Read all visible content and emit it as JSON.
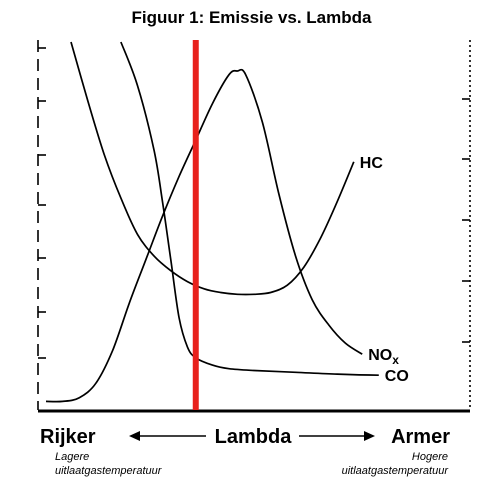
{
  "chart_data": {
    "type": "line",
    "title": "Figuur 1: Emissie vs. Lambda",
    "x_axis": {
      "center_label": "Lambda",
      "left_label": "Rijker",
      "left_sublabel": [
        "Lagere",
        "uitlaatgastemperatuur"
      ],
      "right_label": "Armer",
      "right_sublabel": [
        "Hogere",
        "uitlaatgastemperatuur"
      ]
    },
    "xlim": [
      0,
      100
    ],
    "ylim": [
      0,
      100
    ],
    "stoichiometric_line": {
      "x": 36,
      "color": "#e8211c"
    },
    "series": [
      {
        "name": "HC",
        "label_parts": [
          "HC"
        ],
        "x": [
          6,
          10,
          14,
          18,
          22,
          26,
          30,
          34,
          38,
          42,
          46,
          50,
          54,
          58,
          62,
          66,
          70,
          74
        ],
        "y": [
          100,
          84,
          69,
          57,
          47,
          41,
          37,
          34,
          32,
          31,
          30.5,
          30.5,
          31,
          33,
          38,
          46,
          56,
          67
        ]
      },
      {
        "name": "NOx",
        "label_parts": [
          "NO",
          "x"
        ],
        "x": [
          0,
          4,
          8,
          12,
          16,
          20,
          24,
          28,
          32,
          36,
          40,
          44,
          46,
          48,
          52,
          56,
          60,
          64,
          68,
          72,
          76
        ],
        "y": [
          1,
          1,
          2,
          6,
          15,
          28,
          40,
          52,
          63,
          73,
          83,
          91,
          92,
          91,
          78,
          58,
          41,
          29,
          22,
          17,
          14
        ]
      },
      {
        "name": "CO",
        "label_parts": [
          "CO"
        ],
        "x": [
          18,
          22,
          26,
          28,
          30,
          32,
          34,
          36,
          40,
          44,
          50,
          60,
          70,
          80
        ],
        "y": [
          100,
          88,
          70,
          56,
          40,
          24,
          16,
          13,
          11,
          10,
          9.5,
          9,
          8.5,
          8.2
        ]
      }
    ],
    "grid": false,
    "legend": "none"
  }
}
